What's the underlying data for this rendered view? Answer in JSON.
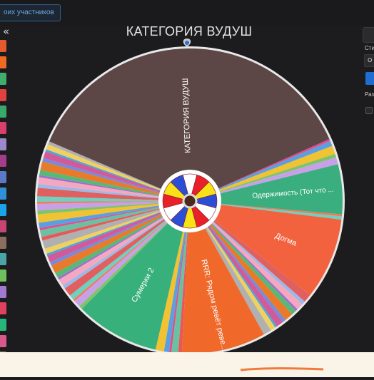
{
  "header": {
    "participants_button": "оих участников",
    "collapse_icon": "«"
  },
  "wheel": {
    "title": "КАТЕГОРИЯ ВУДУШ",
    "segments": [
      {
        "label": "КАТЕГОРИЯ ВУДУШ",
        "color": "#5c4646"
      },
      {
        "label": "Одержимость (Тот что ...",
        "color": "#3aae7e"
      },
      {
        "label": "Догма",
        "color": "#f3623f"
      },
      {
        "label": "RRR: Рядом ревёт реве...",
        "color": "#f0682a"
      },
      {
        "label": "Сумерки 2",
        "color": "#38b07c"
      }
    ],
    "center_colors": [
      "#e8202a",
      "#2a4fd6",
      "#f7e21a",
      "#ffffff"
    ]
  },
  "right_panel": {
    "style_label": "Сти",
    "select_value": "О",
    "size_label": "Раз"
  },
  "sidebar": {
    "colors": [
      "#e25a2e",
      "#f06a20",
      "#3fae6d",
      "#e2423f",
      "#3aa86b",
      "#d8406b",
      "#9b8acb",
      "#a33c8a",
      "#5a7ac8",
      "#2f8fd8",
      "#1aa3e8",
      "#c94473",
      "#8b6e5e",
      "#4aa3a8",
      "#6fbf5f",
      "#a07ad0",
      "#e0415e",
      "#27b67a",
      "#d85a8a",
      "#9c7c4c"
    ]
  }
}
